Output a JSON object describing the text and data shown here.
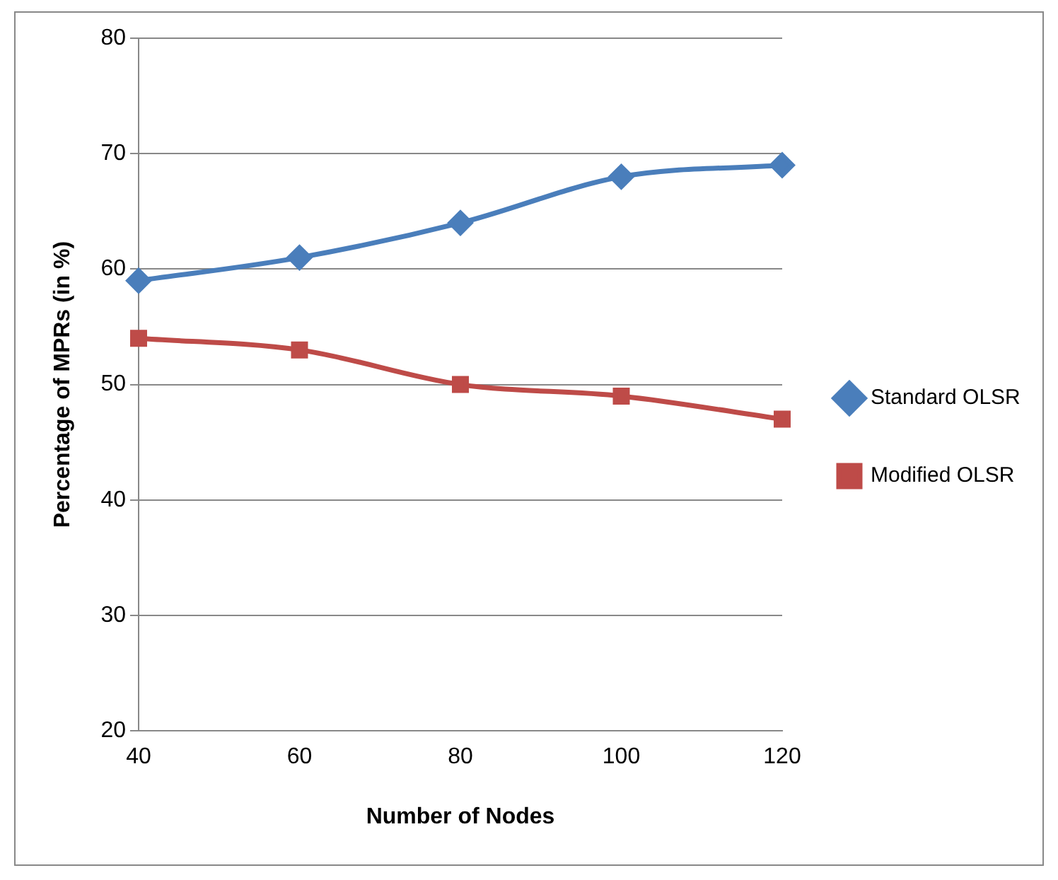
{
  "chart_data": {
    "type": "line",
    "xlabel": "Number of Nodes",
    "ylabel": "Percentage of MPRs (in %)",
    "categories": [
      "40",
      "60",
      "80",
      "100",
      "120"
    ],
    "series": [
      {
        "name": "Standard OLSR",
        "color": "#4a7ebb",
        "marker": "diamond",
        "values": [
          59,
          61,
          64,
          68,
          69
        ]
      },
      {
        "name": "Modified OLSR",
        "color": "#be4b48",
        "marker": "square",
        "values": [
          54,
          53,
          50,
          49,
          47
        ]
      }
    ],
    "ylim": [
      20,
      80
    ],
    "yticks": [
      20,
      30,
      40,
      50,
      60,
      70,
      80
    ],
    "grid": "y",
    "legend": "right"
  }
}
